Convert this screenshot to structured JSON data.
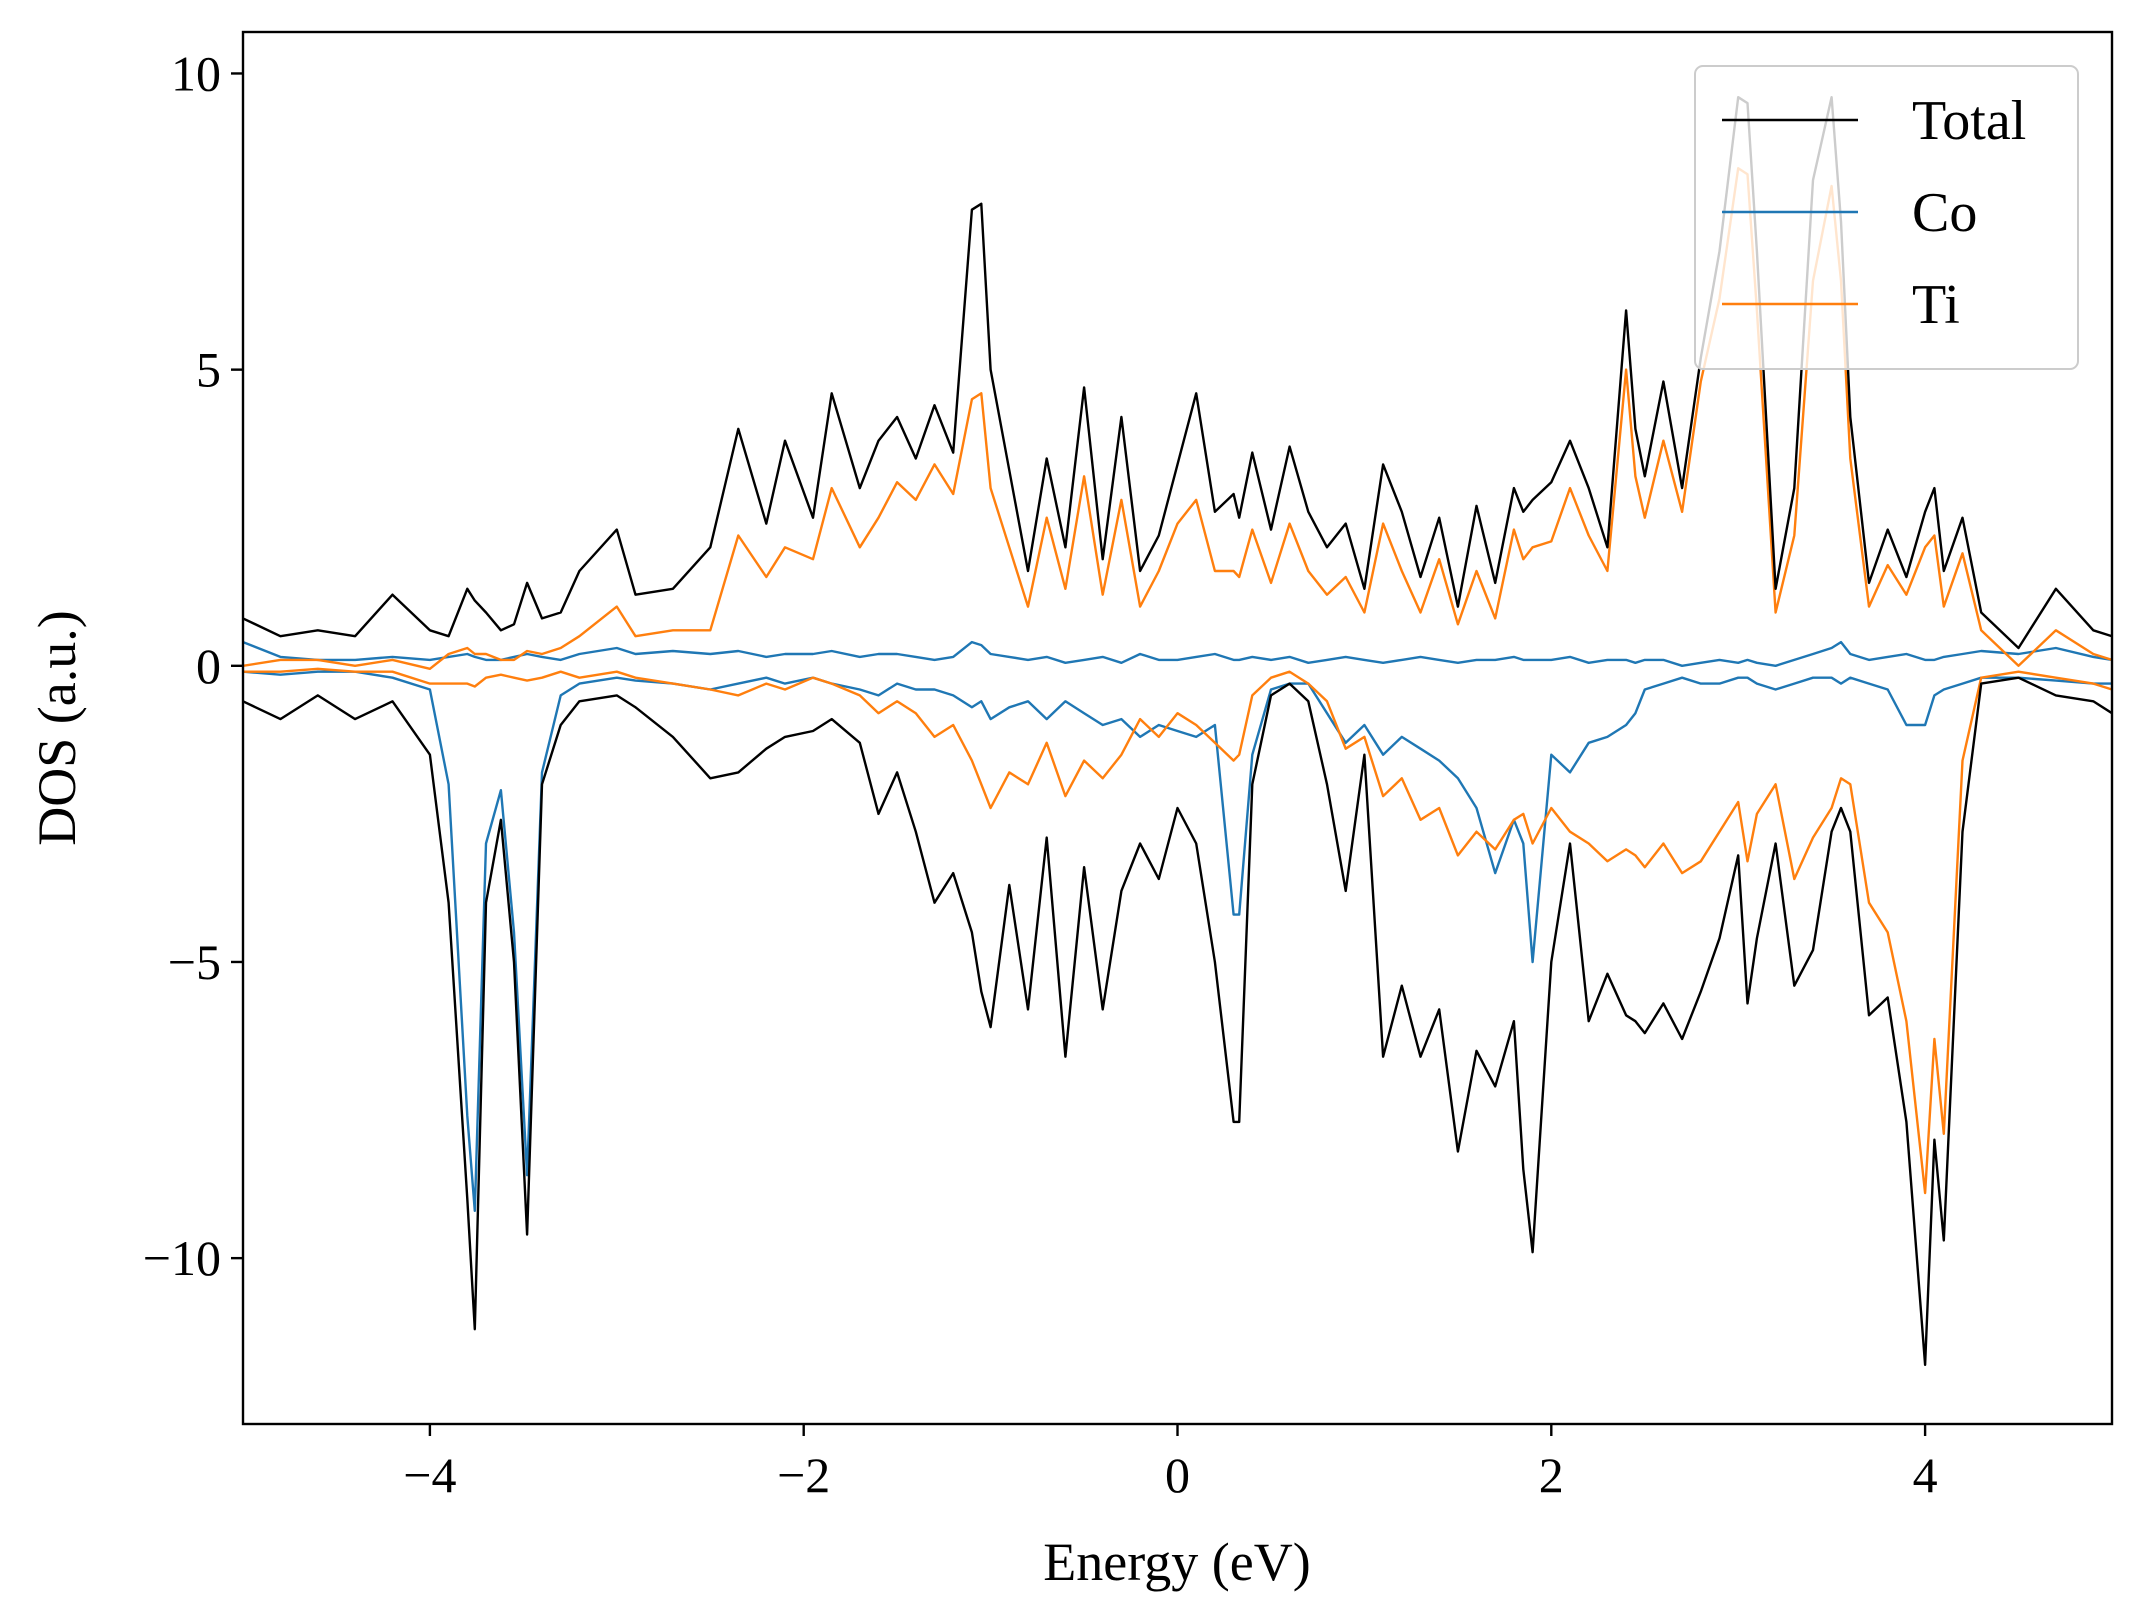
{
  "chart_data": {
    "type": "line",
    "title": "",
    "xlabel": "Energy (eV)",
    "ylabel": "DOS (a.u.)",
    "xlim": [
      -5,
      5
    ],
    "ylim": [
      -12.8,
      10.7
    ],
    "grid": false,
    "legend_position": "top-right",
    "x_ticks": [
      {
        "value": -4,
        "label": "−4"
      },
      {
        "value": -2,
        "label": "−2"
      },
      {
        "value": 0,
        "label": "0"
      },
      {
        "value": 2,
        "label": "2"
      },
      {
        "value": 4,
        "label": "4"
      }
    ],
    "y_ticks": [
      {
        "value": 10,
        "label": "10"
      },
      {
        "value": 5,
        "label": "5"
      },
      {
        "value": 0,
        "label": "0"
      },
      {
        "value": -5,
        "label": "−5"
      },
      {
        "value": -10,
        "label": "−10"
      }
    ],
    "x": [
      -5.0,
      -4.8,
      -4.6,
      -4.4,
      -4.2,
      -4.0,
      -3.9,
      -3.8,
      -3.76,
      -3.7,
      -3.62,
      -3.55,
      -3.48,
      -3.4,
      -3.3,
      -3.2,
      -3.0,
      -2.9,
      -2.7,
      -2.5,
      -2.35,
      -2.2,
      -2.1,
      -1.95,
      -1.85,
      -1.7,
      -1.6,
      -1.5,
      -1.4,
      -1.3,
      -1.2,
      -1.1,
      -1.05,
      -1.0,
      -0.9,
      -0.8,
      -0.7,
      -0.6,
      -0.5,
      -0.4,
      -0.3,
      -0.2,
      -0.1,
      0.0,
      0.1,
      0.2,
      0.3,
      0.33,
      0.4,
      0.5,
      0.6,
      0.7,
      0.8,
      0.9,
      1.0,
      1.1,
      1.2,
      1.3,
      1.4,
      1.5,
      1.6,
      1.7,
      1.8,
      1.85,
      1.9,
      2.0,
      2.1,
      2.2,
      2.3,
      2.4,
      2.45,
      2.5,
      2.6,
      2.7,
      2.8,
      2.9,
      3.0,
      3.05,
      3.1,
      3.2,
      3.3,
      3.4,
      3.5,
      3.55,
      3.6,
      3.7,
      3.8,
      3.9,
      4.0,
      4.05,
      4.1,
      4.2,
      4.3,
      4.5,
      4.7,
      4.9,
      5.0
    ],
    "series": [
      {
        "name": "Total",
        "color": "#000000",
        "width": 2.4,
        "up": [
          0.8,
          0.5,
          0.6,
          0.5,
          1.2,
          0.6,
          0.5,
          1.3,
          1.1,
          0.9,
          0.6,
          0.7,
          1.4,
          0.8,
          0.9,
          1.6,
          2.3,
          1.2,
          1.3,
          2.0,
          4.0,
          2.4,
          3.8,
          2.5,
          4.6,
          3.0,
          3.8,
          4.2,
          3.5,
          4.4,
          3.6,
          7.7,
          7.8,
          5.0,
          3.3,
          1.6,
          3.5,
          2.0,
          4.7,
          1.8,
          4.2,
          1.6,
          2.2,
          3.4,
          4.6,
          2.6,
          2.9,
          2.5,
          3.6,
          2.3,
          3.7,
          2.6,
          2.0,
          2.4,
          1.3,
          3.4,
          2.6,
          1.5,
          2.5,
          1.0,
          2.7,
          1.4,
          3.0,
          2.6,
          2.8,
          3.1,
          3.8,
          3.0,
          2.0,
          6.0,
          4.0,
          3.2,
          4.8,
          3.0,
          5.2,
          7.0,
          9.6,
          9.5,
          7.0,
          1.3,
          3.0,
          8.2,
          9.6,
          7.5,
          4.2,
          1.4,
          2.3,
          1.5,
          2.6,
          3.0,
          1.6,
          2.5,
          0.9,
          0.3,
          1.3,
          0.6,
          0.5
        ],
        "down": [
          -0.6,
          -0.9,
          -0.5,
          -0.9,
          -0.6,
          -1.5,
          -4.0,
          -9.0,
          -11.2,
          -4.0,
          -2.6,
          -5.0,
          -9.6,
          -2.0,
          -1.0,
          -0.6,
          -0.5,
          -0.7,
          -1.2,
          -1.9,
          -1.8,
          -1.4,
          -1.2,
          -1.1,
          -0.9,
          -1.3,
          -2.5,
          -1.8,
          -2.8,
          -4.0,
          -3.5,
          -4.5,
          -5.5,
          -6.1,
          -3.7,
          -5.8,
          -2.9,
          -6.6,
          -3.4,
          -5.8,
          -3.8,
          -3.0,
          -3.6,
          -2.4,
          -3.0,
          -5.0,
          -7.7,
          -7.7,
          -2.0,
          -0.5,
          -0.3,
          -0.6,
          -2.0,
          -3.8,
          -1.5,
          -6.6,
          -5.4,
          -6.6,
          -5.8,
          -8.2,
          -6.5,
          -7.1,
          -6.0,
          -8.5,
          -9.9,
          -5.0,
          -3.0,
          -6.0,
          -5.2,
          -5.9,
          -6.0,
          -6.2,
          -5.7,
          -6.3,
          -5.5,
          -4.6,
          -3.2,
          -5.7,
          -4.6,
          -3.0,
          -5.4,
          -4.8,
          -2.8,
          -2.4,
          -2.8,
          -5.9,
          -5.6,
          -7.7,
          -11.8,
          -8.0,
          -9.7,
          -2.8,
          -0.3,
          -0.2,
          -0.5,
          -0.6,
          -0.8
        ]
      },
      {
        "name": "Co",
        "color": "#1f77b4",
        "width": 2.4,
        "up": [
          0.4,
          0.15,
          0.1,
          0.1,
          0.15,
          0.1,
          0.15,
          0.2,
          0.15,
          0.1,
          0.1,
          0.15,
          0.2,
          0.15,
          0.1,
          0.2,
          0.3,
          0.2,
          0.25,
          0.2,
          0.25,
          0.15,
          0.2,
          0.2,
          0.25,
          0.15,
          0.2,
          0.2,
          0.15,
          0.1,
          0.15,
          0.4,
          0.35,
          0.2,
          0.15,
          0.1,
          0.15,
          0.05,
          0.1,
          0.15,
          0.05,
          0.2,
          0.1,
          0.1,
          0.15,
          0.2,
          0.1,
          0.1,
          0.15,
          0.1,
          0.15,
          0.05,
          0.1,
          0.15,
          0.1,
          0.05,
          0.1,
          0.15,
          0.1,
          0.05,
          0.1,
          0.1,
          0.15,
          0.1,
          0.1,
          0.1,
          0.15,
          0.05,
          0.1,
          0.1,
          0.05,
          0.1,
          0.1,
          0.0,
          0.05,
          0.1,
          0.05,
          0.1,
          0.05,
          0.0,
          0.1,
          0.2,
          0.3,
          0.4,
          0.2,
          0.1,
          0.15,
          0.2,
          0.1,
          0.1,
          0.15,
          0.2,
          0.25,
          0.2,
          0.3,
          0.15,
          0.1
        ],
        "down": [
          -0.1,
          -0.15,
          -0.1,
          -0.1,
          -0.2,
          -0.4,
          -2.0,
          -7.6,
          -9.2,
          -3.0,
          -2.1,
          -4.5,
          -8.6,
          -1.8,
          -0.5,
          -0.3,
          -0.2,
          -0.25,
          -0.3,
          -0.4,
          -0.3,
          -0.2,
          -0.3,
          -0.2,
          -0.3,
          -0.4,
          -0.5,
          -0.3,
          -0.4,
          -0.4,
          -0.5,
          -0.7,
          -0.6,
          -0.9,
          -0.7,
          -0.6,
          -0.9,
          -0.6,
          -0.8,
          -1.0,
          -0.9,
          -1.2,
          -1.0,
          -1.1,
          -1.2,
          -1.0,
          -4.2,
          -4.2,
          -1.5,
          -0.4,
          -0.3,
          -0.3,
          -0.8,
          -1.3,
          -1.0,
          -1.5,
          -1.2,
          -1.4,
          -1.6,
          -1.9,
          -2.4,
          -3.5,
          -2.6,
          -3.0,
          -5.0,
          -1.5,
          -1.8,
          -1.3,
          -1.2,
          -1.0,
          -0.8,
          -0.4,
          -0.3,
          -0.2,
          -0.3,
          -0.3,
          -0.2,
          -0.2,
          -0.3,
          -0.4,
          -0.3,
          -0.2,
          -0.2,
          -0.3,
          -0.2,
          -0.3,
          -0.4,
          -1.0,
          -1.0,
          -0.5,
          -0.4,
          -0.3,
          -0.2,
          -0.2,
          -0.25,
          -0.3,
          -0.3
        ]
      },
      {
        "name": "Ti",
        "color": "#ff7f0e",
        "width": 2.4,
        "up": [
          0.0,
          0.1,
          0.1,
          0.0,
          0.1,
          -0.05,
          0.2,
          0.3,
          0.2,
          0.2,
          0.1,
          0.1,
          0.25,
          0.2,
          0.3,
          0.5,
          1.0,
          0.5,
          0.6,
          0.6,
          2.2,
          1.5,
          2.0,
          1.8,
          3.0,
          2.0,
          2.5,
          3.1,
          2.8,
          3.4,
          2.9,
          4.5,
          4.6,
          3.0,
          2.0,
          1.0,
          2.5,
          1.3,
          3.2,
          1.2,
          2.8,
          1.0,
          1.6,
          2.4,
          2.8,
          1.6,
          1.6,
          1.5,
          2.3,
          1.4,
          2.4,
          1.6,
          1.2,
          1.5,
          0.9,
          2.4,
          1.6,
          0.9,
          1.8,
          0.7,
          1.6,
          0.8,
          2.3,
          1.8,
          2.0,
          2.1,
          3.0,
          2.2,
          1.6,
          5.0,
          3.2,
          2.5,
          3.8,
          2.6,
          4.8,
          6.2,
          8.4,
          8.3,
          6.0,
          0.9,
          2.2,
          6.5,
          8.1,
          6.5,
          3.5,
          1.0,
          1.7,
          1.2,
          2.0,
          2.2,
          1.0,
          1.9,
          0.6,
          0.0,
          0.6,
          0.2,
          0.1
        ],
        "down": [
          -0.1,
          -0.1,
          -0.05,
          -0.1,
          -0.1,
          -0.3,
          -0.3,
          -0.3,
          -0.35,
          -0.2,
          -0.15,
          -0.2,
          -0.25,
          -0.2,
          -0.1,
          -0.2,
          -0.1,
          -0.2,
          -0.3,
          -0.4,
          -0.5,
          -0.3,
          -0.4,
          -0.2,
          -0.3,
          -0.5,
          -0.8,
          -0.6,
          -0.8,
          -1.2,
          -1.0,
          -1.6,
          -2.0,
          -2.4,
          -1.8,
          -2.0,
          -1.3,
          -2.2,
          -1.6,
          -1.9,
          -1.5,
          -0.9,
          -1.2,
          -0.8,
          -1.0,
          -1.3,
          -1.6,
          -1.5,
          -0.5,
          -0.2,
          -0.1,
          -0.3,
          -0.6,
          -1.4,
          -1.2,
          -2.2,
          -1.9,
          -2.6,
          -2.4,
          -3.2,
          -2.8,
          -3.1,
          -2.6,
          -2.5,
          -3.0,
          -2.4,
          -2.8,
          -3.0,
          -3.3,
          -3.1,
          -3.2,
          -3.4,
          -3.0,
          -3.5,
          -3.3,
          -2.8,
          -2.3,
          -3.3,
          -2.5,
          -2.0,
          -3.6,
          -2.9,
          -2.4,
          -1.9,
          -2.0,
          -4.0,
          -4.5,
          -6.0,
          -8.9,
          -6.3,
          -7.9,
          -1.6,
          -0.2,
          -0.1,
          -0.2,
          -0.3,
          -0.4
        ]
      }
    ]
  }
}
